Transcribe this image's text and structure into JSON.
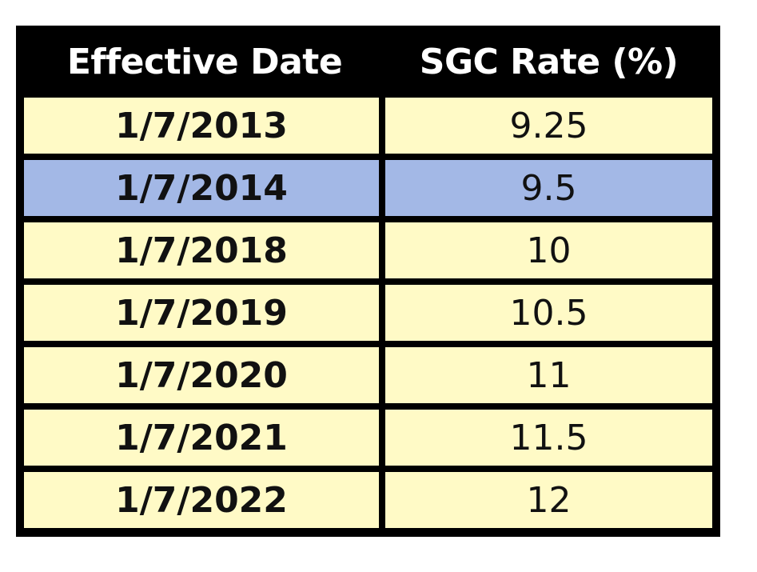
{
  "chart_data": {
    "type": "table",
    "columns": [
      "Effective Date",
      "SGC Rate (%)"
    ],
    "rows": [
      {
        "date": "1/7/2013",
        "rate": "9.25"
      },
      {
        "date": "1/7/2014",
        "rate": "9.5",
        "highlighted": true
      },
      {
        "date": "1/7/2018",
        "rate": "10"
      },
      {
        "date": "1/7/2019",
        "rate": "10.5"
      },
      {
        "date": "1/7/2020",
        "rate": "11"
      },
      {
        "date": "1/7/2021",
        "rate": "11.5"
      },
      {
        "date": "1/7/2022",
        "rate": "12"
      }
    ]
  },
  "colors": {
    "header_bg": "#000000",
    "header_text": "#ffffff",
    "row_bg": "#fffac6",
    "highlight_bg": "#a3b8e6",
    "grid": "#000000"
  }
}
